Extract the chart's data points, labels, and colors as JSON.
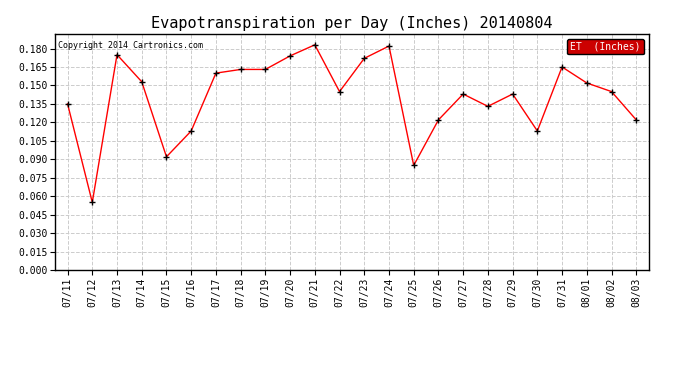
{
  "title": "Evapotranspiration per Day (Inches) 20140804",
  "copyright": "Copyright 2014 Cartronics.com",
  "legend_label": "ET  (Inches)",
  "dates": [
    "07/11",
    "07/12",
    "07/13",
    "07/14",
    "07/15",
    "07/16",
    "07/17",
    "07/18",
    "07/19",
    "07/20",
    "07/21",
    "07/22",
    "07/23",
    "07/24",
    "07/25",
    "07/26",
    "07/27",
    "07/28",
    "07/29",
    "07/30",
    "07/31",
    "08/01",
    "08/02",
    "08/03"
  ],
  "values": [
    0.135,
    0.055,
    0.175,
    0.153,
    0.092,
    0.113,
    0.16,
    0.163,
    0.163,
    0.174,
    0.183,
    0.145,
    0.172,
    0.182,
    0.085,
    0.122,
    0.143,
    0.133,
    0.143,
    0.113,
    0.165,
    0.152,
    0.145,
    0.122
  ],
  "line_color": "red",
  "marker": "+",
  "marker_color": "black",
  "ylim": [
    0.0,
    0.192
  ],
  "yticks": [
    0.0,
    0.015,
    0.03,
    0.045,
    0.06,
    0.075,
    0.09,
    0.105,
    0.12,
    0.135,
    0.15,
    0.165,
    0.18
  ],
  "plot_bg": "#ffffff",
  "fig_bg": "#ffffff",
  "grid_color": "#cccccc",
  "title_fontsize": 11,
  "tick_fontsize": 7,
  "legend_bg": "#cc0000",
  "legend_text_color": "#ffffff"
}
